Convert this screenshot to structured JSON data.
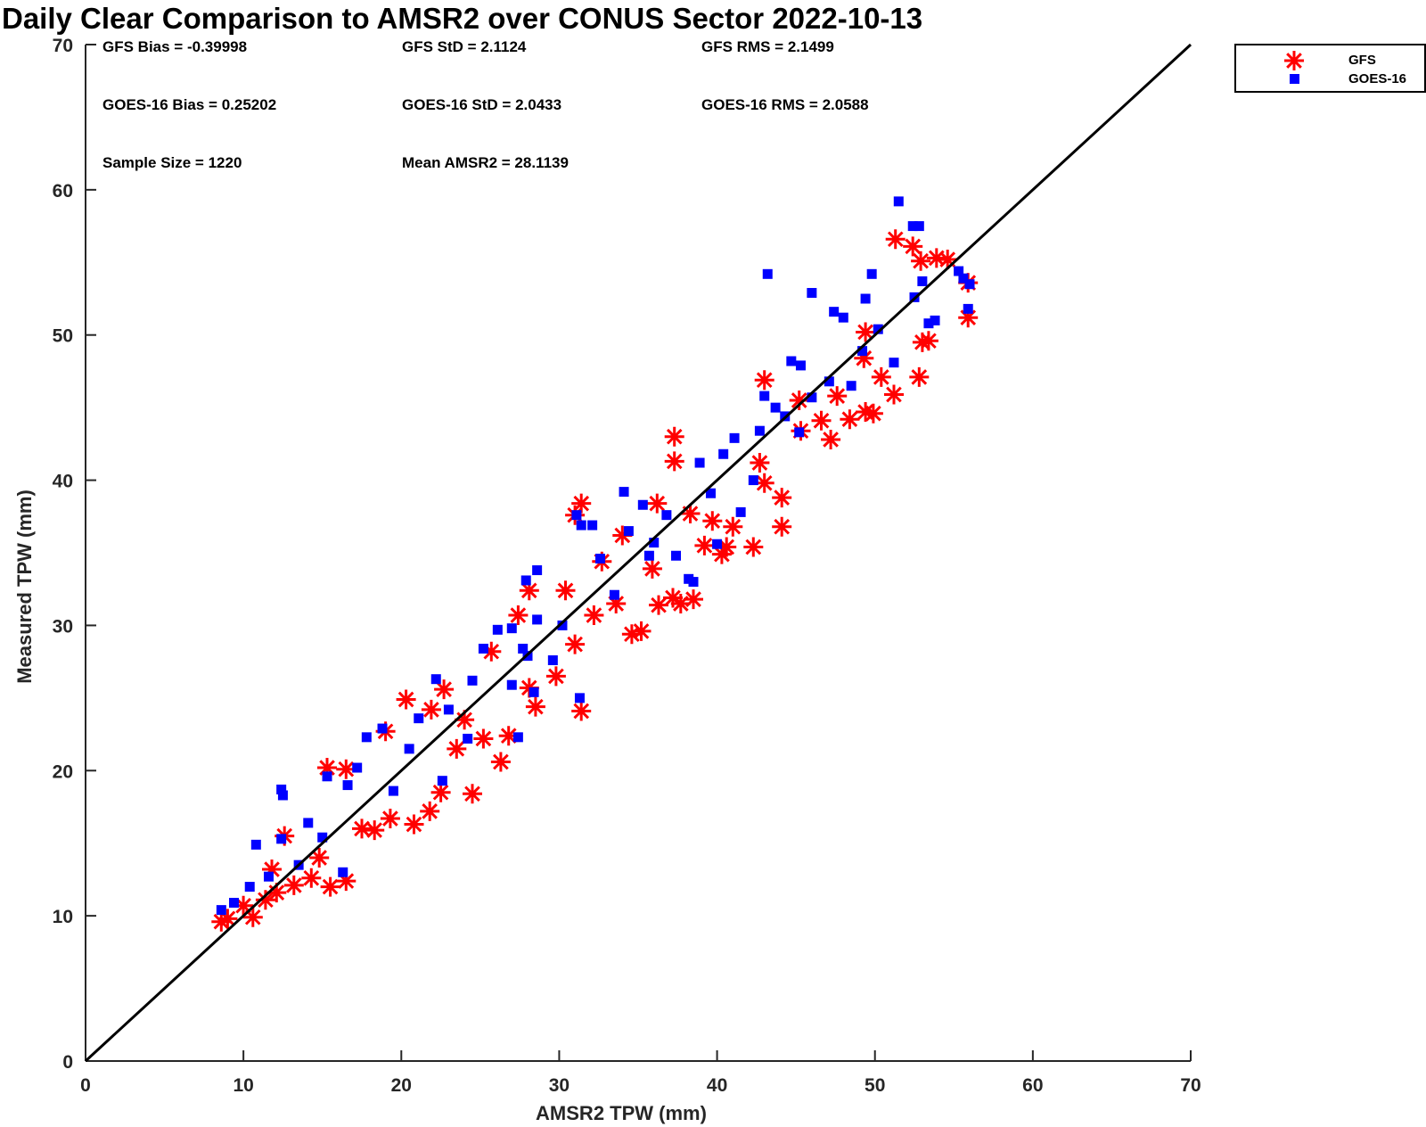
{
  "chart_data": {
    "type": "scatter",
    "title": "Daily Clear Comparison to AMSR2 over CONUS Sector 2022-10-13",
    "xlabel": "AMSR2 TPW (mm)",
    "ylabel": "Measured TPW (mm)",
    "xlim": [
      0,
      70
    ],
    "ylim": [
      0,
      70
    ],
    "xticks": [
      0,
      10,
      20,
      30,
      40,
      50,
      60,
      70
    ],
    "yticks": [
      0,
      10,
      20,
      30,
      40,
      50,
      60,
      70
    ],
    "grid": false,
    "legend_position": "outside top-right",
    "reference_line": [
      [
        0,
        0
      ],
      [
        70,
        70
      ]
    ],
    "stats": {
      "gfs_bias": "GFS Bias = -0.39998",
      "gfs_std": "GFS StD = 2.1124",
      "gfs_rms": "GFS RMS = 2.1499",
      "goes_bias": "GOES-16 Bias = 0.25202",
      "goes_std": "GOES-16 StD = 2.0433",
      "goes_rms": "GOES-16 RMS = 2.0588",
      "sample_size": "Sample Size = 1220",
      "mean_amsr2": "Mean AMSR2 = 28.1139"
    },
    "series": [
      {
        "name": "GFS",
        "marker": "asterisk",
        "color": "#ff0000",
        "points": [
          [
            8.6,
            9.6
          ],
          [
            9.0,
            9.8
          ],
          [
            10.6,
            9.9
          ],
          [
            10.0,
            10.7
          ],
          [
            11.4,
            11.1
          ],
          [
            12.1,
            11.6
          ],
          [
            13.2,
            12.1
          ],
          [
            14.3,
            12.6
          ],
          [
            15.5,
            12.0
          ],
          [
            16.5,
            12.4
          ],
          [
            12.6,
            15.5
          ],
          [
            11.8,
            13.2
          ],
          [
            14.8,
            14.0
          ],
          [
            15.3,
            20.2
          ],
          [
            16.5,
            20.1
          ],
          [
            17.5,
            16.0
          ],
          [
            18.3,
            15.9
          ],
          [
            19.3,
            16.7
          ],
          [
            20.8,
            16.3
          ],
          [
            21.8,
            17.2
          ],
          [
            22.5,
            18.5
          ],
          [
            24.5,
            18.4
          ],
          [
            22.7,
            25.6
          ],
          [
            20.3,
            24.9
          ],
          [
            21.9,
            24.2
          ],
          [
            23.5,
            21.5
          ],
          [
            25.2,
            22.2
          ],
          [
            26.3,
            20.6
          ],
          [
            26.8,
            22.4
          ],
          [
            28.5,
            24.4
          ],
          [
            28.1,
            25.7
          ],
          [
            28.1,
            32.4
          ],
          [
            27.4,
            30.7
          ],
          [
            29.8,
            26.5
          ],
          [
            31.0,
            28.7
          ],
          [
            31.4,
            24.1
          ],
          [
            30.4,
            32.4
          ],
          [
            32.2,
            30.7
          ],
          [
            32.7,
            34.4
          ],
          [
            33.6,
            31.5
          ],
          [
            34.6,
            29.4
          ],
          [
            35.2,
            29.6
          ],
          [
            35.9,
            33.9
          ],
          [
            36.3,
            31.4
          ],
          [
            37.2,
            31.9
          ],
          [
            37.7,
            31.5
          ],
          [
            38.5,
            31.8
          ],
          [
            31.0,
            37.6
          ],
          [
            31.4,
            38.4
          ],
          [
            34.0,
            36.2
          ],
          [
            36.2,
            38.4
          ],
          [
            37.3,
            43.0
          ],
          [
            37.3,
            41.3
          ],
          [
            38.3,
            37.7
          ],
          [
            39.2,
            35.5
          ],
          [
            40.6,
            35.4
          ],
          [
            41.0,
            36.8
          ],
          [
            42.3,
            35.4
          ],
          [
            43.0,
            39.8
          ],
          [
            42.7,
            41.2
          ],
          [
            44.1,
            36.8
          ],
          [
            44.1,
            38.8
          ],
          [
            45.3,
            43.4
          ],
          [
            43.0,
            46.9
          ],
          [
            46.6,
            44.1
          ],
          [
            47.2,
            42.8
          ],
          [
            47.6,
            45.8
          ],
          [
            48.4,
            44.2
          ],
          [
            49.4,
            44.7
          ],
          [
            49.9,
            44.6
          ],
          [
            49.4,
            50.2
          ],
          [
            49.3,
            48.4
          ],
          [
            50.4,
            47.1
          ],
          [
            51.2,
            45.9
          ],
          [
            52.8,
            47.1
          ],
          [
            53.0,
            49.5
          ],
          [
            53.4,
            49.6
          ],
          [
            51.3,
            56.6
          ],
          [
            52.4,
            56.1
          ],
          [
            52.9,
            55.1
          ],
          [
            53.9,
            55.3
          ],
          [
            54.6,
            55.2
          ],
          [
            55.9,
            53.6
          ],
          [
            55.9,
            51.2
          ],
          [
            39.7,
            37.2
          ],
          [
            40.3,
            34.9
          ],
          [
            25.7,
            28.2
          ],
          [
            24.0,
            23.5
          ],
          [
            19.0,
            22.7
          ],
          [
            45.2,
            45.5
          ]
        ]
      },
      {
        "name": "GOES-16",
        "marker": "square",
        "color": "#0000ff",
        "points": [
          [
            8.6,
            10.4
          ],
          [
            9.4,
            10.9
          ],
          [
            10.4,
            12.0
          ],
          [
            10.8,
            14.9
          ],
          [
            11.6,
            12.7
          ],
          [
            12.4,
            15.3
          ],
          [
            12.4,
            18.7
          ],
          [
            12.5,
            18.3
          ],
          [
            13.5,
            13.5
          ],
          [
            14.1,
            16.4
          ],
          [
            15.0,
            15.4
          ],
          [
            15.3,
            19.6
          ],
          [
            16.3,
            13.0
          ],
          [
            16.6,
            19.0
          ],
          [
            17.2,
            20.2
          ],
          [
            17.8,
            22.3
          ],
          [
            18.8,
            22.9
          ],
          [
            19.5,
            18.6
          ],
          [
            20.5,
            21.5
          ],
          [
            21.1,
            23.6
          ],
          [
            22.2,
            26.3
          ],
          [
            23.0,
            24.2
          ],
          [
            22.6,
            19.3
          ],
          [
            24.2,
            22.2
          ],
          [
            24.5,
            26.2
          ],
          [
            25.2,
            28.4
          ],
          [
            26.1,
            29.7
          ],
          [
            27.0,
            29.8
          ],
          [
            27.7,
            28.4
          ],
          [
            27.9,
            33.1
          ],
          [
            28.0,
            27.9
          ],
          [
            28.6,
            33.8
          ],
          [
            28.4,
            25.4
          ],
          [
            27.4,
            22.3
          ],
          [
            28.6,
            30.4
          ],
          [
            29.6,
            27.6
          ],
          [
            30.2,
            30.0
          ],
          [
            31.1,
            37.6
          ],
          [
            31.4,
            36.9
          ],
          [
            32.1,
            36.9
          ],
          [
            31.3,
            25.0
          ],
          [
            32.6,
            34.6
          ],
          [
            33.5,
            32.1
          ],
          [
            34.1,
            39.2
          ],
          [
            34.4,
            36.5
          ],
          [
            35.3,
            38.3
          ],
          [
            35.7,
            34.8
          ],
          [
            36.0,
            35.7
          ],
          [
            36.8,
            37.6
          ],
          [
            37.4,
            34.8
          ],
          [
            38.2,
            33.2
          ],
          [
            38.5,
            33.0
          ],
          [
            39.6,
            39.1
          ],
          [
            40.0,
            35.6
          ],
          [
            40.4,
            41.8
          ],
          [
            41.1,
            42.9
          ],
          [
            41.5,
            37.8
          ],
          [
            42.3,
            40.0
          ],
          [
            42.7,
            43.4
          ],
          [
            43.0,
            45.8
          ],
          [
            43.2,
            54.2
          ],
          [
            43.7,
            45.0
          ],
          [
            44.3,
            44.4
          ],
          [
            44.7,
            48.2
          ],
          [
            45.3,
            47.9
          ],
          [
            45.2,
            43.3
          ],
          [
            46.0,
            45.7
          ],
          [
            46.0,
            52.9
          ],
          [
            47.1,
            46.8
          ],
          [
            47.4,
            51.6
          ],
          [
            48.0,
            51.2
          ],
          [
            48.5,
            46.5
          ],
          [
            49.2,
            48.9
          ],
          [
            49.4,
            52.5
          ],
          [
            49.8,
            54.2
          ],
          [
            50.2,
            50.4
          ],
          [
            51.2,
            48.1
          ],
          [
            51.5,
            59.2
          ],
          [
            52.4,
            57.5
          ],
          [
            52.8,
            57.5
          ],
          [
            52.5,
            52.6
          ],
          [
            53.0,
            53.7
          ],
          [
            53.4,
            50.8
          ],
          [
            53.8,
            51.0
          ],
          [
            55.3,
            54.4
          ],
          [
            55.6,
            53.9
          ],
          [
            55.9,
            51.8
          ],
          [
            56.0,
            53.5
          ],
          [
            38.9,
            41.2
          ],
          [
            27.0,
            25.9
          ]
        ]
      }
    ]
  }
}
